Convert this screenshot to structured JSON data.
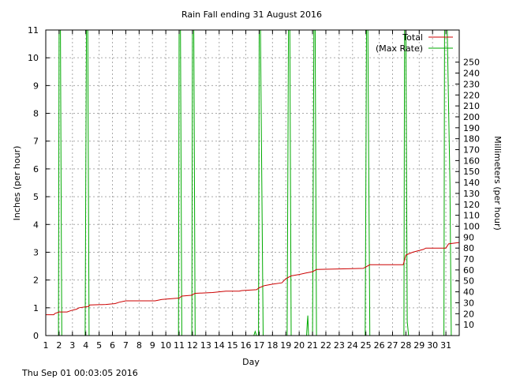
{
  "chart_data": {
    "type": "line",
    "title": "Rain Fall ending 31 August 2016",
    "xlabel": "Day",
    "ylabel": "Inches (per hour)",
    "y2label": "Millimeters (per hour)",
    "footer": "Thu Sep 01 00:03:05 2016",
    "grid": true,
    "legend_position": "top-right",
    "xlim": [
      1,
      32
    ],
    "ylim": [
      0,
      11
    ],
    "y2lim": [
      0,
      279.4
    ],
    "x_ticks": [
      "1",
      "2",
      "3",
      "4",
      "5",
      "6",
      "7",
      "8",
      "9",
      "10",
      "11",
      "12",
      "13",
      "14",
      "15",
      "16",
      "17",
      "18",
      "19",
      "20",
      "21",
      "22",
      "23",
      "24",
      "25",
      "26",
      "27",
      "28",
      "29",
      "30",
      "31"
    ],
    "y_ticks": [
      "0",
      "1",
      "2",
      "3",
      "4",
      "5",
      "6",
      "7",
      "8",
      "9",
      "10",
      "11"
    ],
    "y2_ticks": [
      "10",
      "20",
      "30",
      "40",
      "50",
      "60",
      "70",
      "80",
      "90",
      "100",
      "110",
      "120",
      "130",
      "140",
      "150",
      "160",
      "170",
      "180",
      "190",
      "200",
      "210",
      "220",
      "230",
      "240",
      "250"
    ],
    "series": [
      {
        "name": "Total",
        "color": "#cc0000",
        "points": [
          [
            1.0,
            0.75
          ],
          [
            1.6,
            0.75
          ],
          [
            1.7,
            0.8
          ],
          [
            2.0,
            0.85
          ],
          [
            2.6,
            0.85
          ],
          [
            2.9,
            0.9
          ],
          [
            3.3,
            0.95
          ],
          [
            3.5,
            1.0
          ],
          [
            4.2,
            1.05
          ],
          [
            4.3,
            1.1
          ],
          [
            5.5,
            1.12
          ],
          [
            6.2,
            1.15
          ],
          [
            6.5,
            1.2
          ],
          [
            7.0,
            1.25
          ],
          [
            9.2,
            1.25
          ],
          [
            9.7,
            1.3
          ],
          [
            11.0,
            1.35
          ],
          [
            11.2,
            1.42
          ],
          [
            11.9,
            1.45
          ],
          [
            12.2,
            1.52
          ],
          [
            13.5,
            1.55
          ],
          [
            14.5,
            1.6
          ],
          [
            15.5,
            1.6
          ],
          [
            15.7,
            1.62
          ],
          [
            16.8,
            1.65
          ],
          [
            17.0,
            1.72
          ],
          [
            17.4,
            1.8
          ],
          [
            18.0,
            1.85
          ],
          [
            18.7,
            1.9
          ],
          [
            19.0,
            2.05
          ],
          [
            19.4,
            2.15
          ],
          [
            20.0,
            2.2
          ],
          [
            20.5,
            2.25
          ],
          [
            21.0,
            2.3
          ],
          [
            21.3,
            2.38
          ],
          [
            23.0,
            2.4
          ],
          [
            24.8,
            2.42
          ],
          [
            25.0,
            2.47
          ],
          [
            25.3,
            2.55
          ],
          [
            27.8,
            2.55
          ],
          [
            28.0,
            2.9
          ],
          [
            28.5,
            3.0
          ],
          [
            29.3,
            3.1
          ],
          [
            29.5,
            3.15
          ],
          [
            31.0,
            3.15
          ],
          [
            31.2,
            3.3
          ],
          [
            32.0,
            3.35
          ]
        ]
      },
      {
        "name": "(Max Rate)",
        "color": "#00aa00",
        "points": [
          [
            1.0,
            0
          ],
          [
            1.95,
            0
          ],
          [
            2.0,
            11
          ],
          [
            2.1,
            11
          ],
          [
            2.15,
            5.5
          ],
          [
            2.2,
            0
          ],
          [
            3.95,
            0
          ],
          [
            4.0,
            5.5
          ],
          [
            4.05,
            11
          ],
          [
            4.15,
            11
          ],
          [
            4.25,
            0
          ],
          [
            10.95,
            0
          ],
          [
            11.0,
            11
          ],
          [
            11.1,
            11
          ],
          [
            11.2,
            0
          ],
          [
            11.95,
            0
          ],
          [
            12.0,
            11
          ],
          [
            12.1,
            11
          ],
          [
            12.2,
            0
          ],
          [
            16.6,
            0
          ],
          [
            16.7,
            0.15
          ],
          [
            16.8,
            0
          ],
          [
            16.95,
            0
          ],
          [
            17.0,
            11
          ],
          [
            17.1,
            11
          ],
          [
            17.2,
            5.5
          ],
          [
            17.3,
            0
          ],
          [
            19.1,
            0
          ],
          [
            19.2,
            11
          ],
          [
            19.3,
            11
          ],
          [
            19.4,
            0
          ],
          [
            20.55,
            0
          ],
          [
            20.6,
            0.4
          ],
          [
            20.65,
            0.72
          ],
          [
            20.7,
            0
          ],
          [
            21.0,
            0
          ],
          [
            21.1,
            11
          ],
          [
            21.2,
            11
          ],
          [
            21.3,
            0
          ],
          [
            24.95,
            0
          ],
          [
            25.0,
            5.5
          ],
          [
            25.05,
            11
          ],
          [
            25.15,
            11
          ],
          [
            25.3,
            0
          ],
          [
            27.85,
            0
          ],
          [
            27.9,
            11
          ],
          [
            28.0,
            11
          ],
          [
            28.1,
            0.5
          ],
          [
            28.2,
            0
          ],
          [
            30.85,
            0
          ],
          [
            30.9,
            11
          ],
          [
            31.1,
            11
          ],
          [
            31.3,
            5.5
          ],
          [
            31.4,
            0
          ],
          [
            32.0,
            0
          ]
        ]
      }
    ]
  }
}
